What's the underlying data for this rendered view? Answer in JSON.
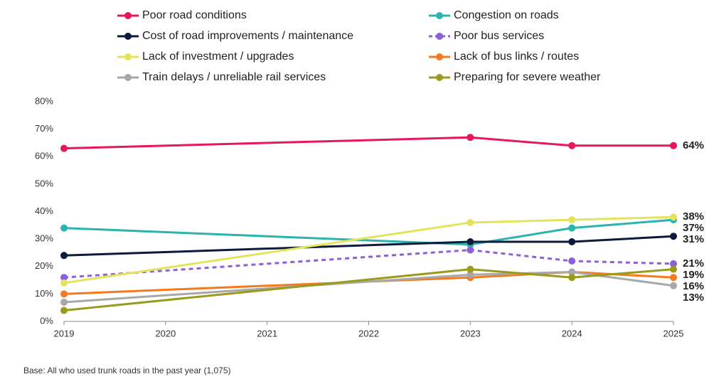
{
  "chart_data": {
    "type": "line",
    "x": [
      2019,
      2023,
      2024,
      2025
    ],
    "xlim": [
      2019,
      2025
    ],
    "xticks": [
      2019,
      2020,
      2021,
      2022,
      2023,
      2024,
      2025
    ],
    "ylim": [
      0,
      80
    ],
    "yticks": [
      {
        "value": 0,
        "label": "0%"
      },
      {
        "value": 10,
        "label": "10%"
      },
      {
        "value": 20,
        "label": "20%"
      },
      {
        "value": 30,
        "label": "30%"
      },
      {
        "value": 40,
        "label": "40%"
      },
      {
        "value": 50,
        "label": "50%"
      },
      {
        "value": 60,
        "label": "60%"
      },
      {
        "value": 70,
        "label": "70%"
      },
      {
        "value": 80,
        "label": "80%"
      }
    ],
    "grid": false,
    "series": [
      {
        "name": "Poor road conditions",
        "color": "#e6175c",
        "values": [
          63,
          67,
          64,
          64
        ],
        "value_labels": [
          null,
          null,
          null,
          "64%"
        ]
      },
      {
        "name": "Congestion on roads",
        "color": "#2bb3ae",
        "values": [
          34,
          28,
          34,
          37
        ],
        "value_labels": [
          null,
          null,
          null,
          "37%"
        ]
      },
      {
        "name": "Cost of road improvements / maintenance",
        "color": "#0e1a3c",
        "values": [
          24,
          29,
          29,
          31
        ],
        "value_labels": [
          null,
          null,
          null,
          "31%"
        ]
      },
      {
        "name": "Poor bus services",
        "color": "#8d5fd8",
        "dashed": true,
        "values": [
          16,
          26,
          22,
          21
        ],
        "value_labels": [
          null,
          null,
          null,
          "21%"
        ]
      },
      {
        "name": "Lack of investment / upgrades",
        "color": "#e5e35c",
        "values": [
          14,
          36,
          37,
          38
        ],
        "value_labels": [
          null,
          null,
          null,
          "38%"
        ]
      },
      {
        "name": "Lack of bus links / routes",
        "color": "#f47a20",
        "values": [
          10,
          16,
          18,
          16
        ],
        "value_labels": [
          null,
          null,
          null,
          "16%"
        ]
      },
      {
        "name": "Train delays / unreliable rail services",
        "color": "#a8a8a8",
        "values": [
          7,
          17,
          18,
          13
        ],
        "value_labels": [
          null,
          null,
          null,
          "13%"
        ]
      },
      {
        "name": "Preparing for severe weather",
        "color": "#9a9a1f",
        "values": [
          4,
          19,
          16,
          19
        ],
        "value_labels": [
          null,
          null,
          null,
          "19%"
        ]
      }
    ],
    "footnote": "Base: All who used trunk roads in the past year (1,075)"
  }
}
